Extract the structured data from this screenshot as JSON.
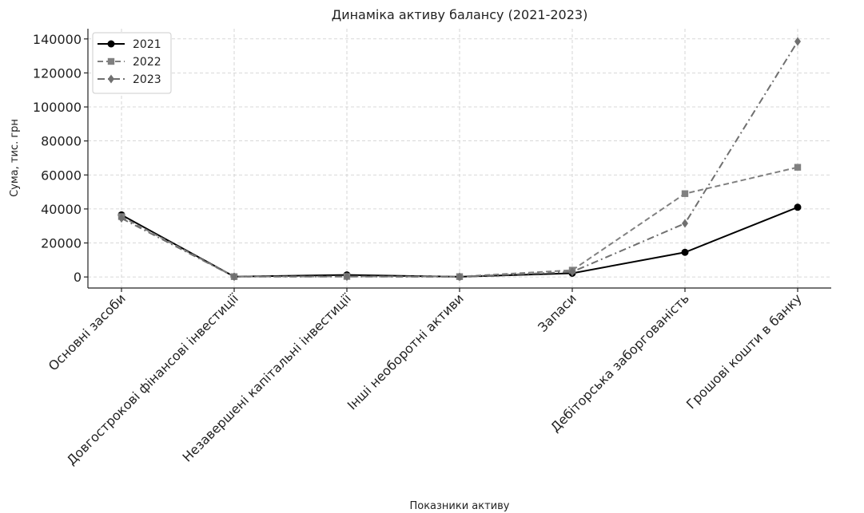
{
  "chart_data": {
    "type": "line",
    "title": "Динаміка активу балансу (2021-2023)",
    "xlabel": "Показники активу",
    "ylabel": "Сума, тис. грн",
    "categories": [
      "Основні засоби",
      "Довгострокові фінансові інвестиції",
      "Незавершені капітальні інвестиції",
      "Інші необоротні активи",
      "Запаси",
      "Дебіторська заборгованість",
      "Грошові кошти в банку"
    ],
    "series": [
      {
        "name": "2021",
        "values": [
          36500,
          200,
          1200,
          100,
          2200,
          14500,
          41000
        ],
        "color": "#000000",
        "dash": "solid",
        "marker": "circle"
      },
      {
        "name": "2022",
        "values": [
          35500,
          200,
          300,
          200,
          4000,
          49000,
          64500
        ],
        "color": "#808080",
        "dash": "dashed",
        "marker": "square"
      },
      {
        "name": "2023",
        "values": [
          34500,
          200,
          200,
          100,
          3000,
          31500,
          138500
        ],
        "color": "#707070",
        "dash": "dashdot",
        "marker": "diamond"
      }
    ],
    "yticks": [
      "0",
      "20000",
      "40000",
      "60000",
      "80000",
      "100000",
      "120000",
      "140000"
    ],
    "ylim": [
      -6500,
      146000
    ],
    "grid": true,
    "legend_position": "top-left"
  }
}
